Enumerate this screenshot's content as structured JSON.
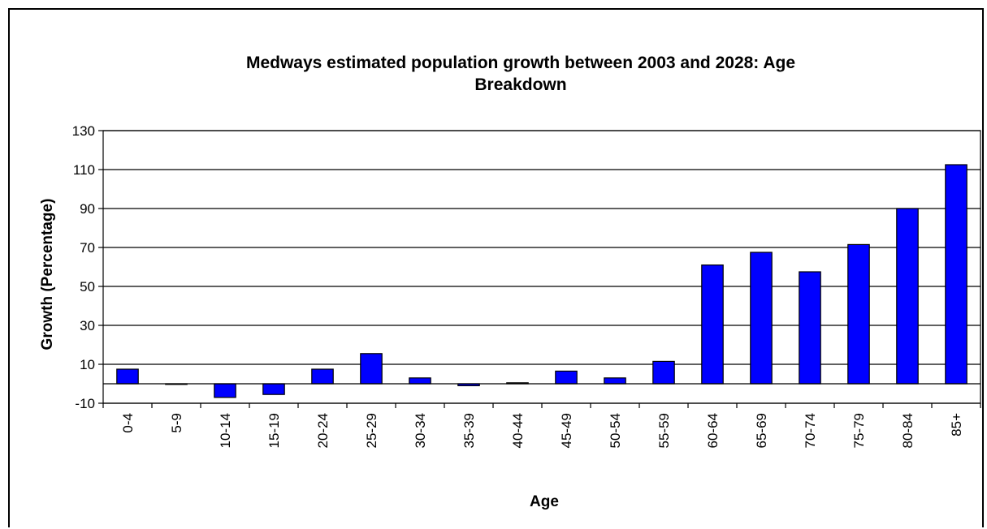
{
  "chart_data": {
    "type": "bar",
    "title_lines": [
      "Medways estimated population growth between 2003 and 2028:    Age",
      "Breakdown"
    ],
    "xlabel": "Age",
    "ylabel": "Growth (Percentage)",
    "categories": [
      "0-4",
      "5-9",
      "10-14",
      "15-19",
      "20-24",
      "25-29",
      "30-34",
      "35-39",
      "40-44",
      "45-49",
      "50-54",
      "55-59",
      "60-64",
      "65-69",
      "70-74",
      "75-79",
      "80-84",
      "85+"
    ],
    "values": [
      7.5,
      0,
      -7,
      -5.5,
      7.5,
      15.5,
      3,
      -1,
      0.5,
      6.5,
      3,
      11.5,
      61,
      67.5,
      57.5,
      71.5,
      90,
      112.5
    ],
    "ylim": [
      -10,
      130
    ],
    "yticks": [
      -10,
      10,
      30,
      50,
      70,
      90,
      110,
      130
    ],
    "grid": true,
    "legend": "none",
    "bar_color": "#0000ff"
  }
}
